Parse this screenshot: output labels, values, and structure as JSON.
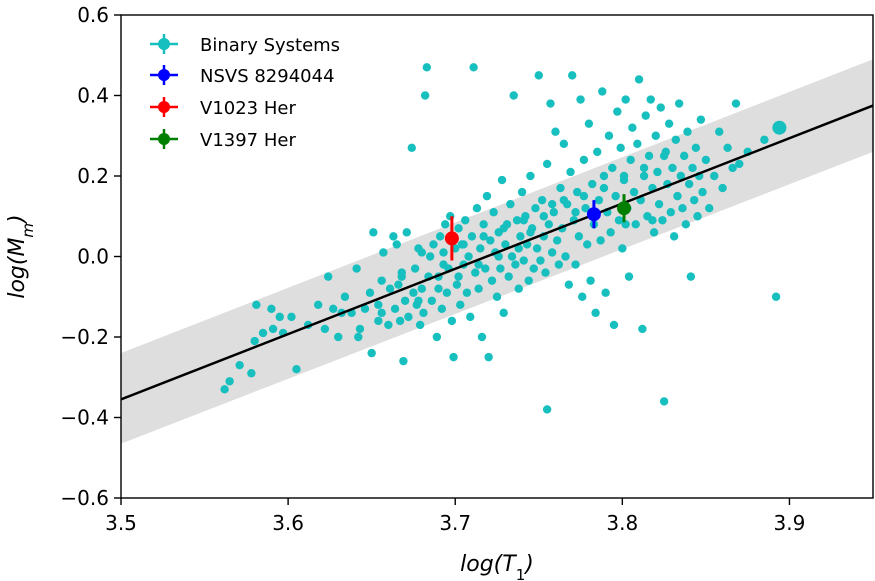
{
  "chart_data": {
    "type": "scatter",
    "xlabel": "log(T",
    "xlabel_sub": "1",
    "xlabel_close": ")",
    "ylabel": "log(M",
    "ylabel_sub": "m",
    "ylabel_close": ")",
    "xlim": [
      3.5,
      3.95
    ],
    "ylim": [
      -0.6,
      0.6
    ],
    "xticks": [
      3.5,
      3.6,
      3.7,
      3.8,
      3.9
    ],
    "xtick_labels": [
      "3.5",
      "3.6",
      "3.7",
      "3.8",
      "3.9"
    ],
    "yticks": [
      -0.6,
      -0.4,
      -0.2,
      0.0,
      0.2,
      0.4,
      0.6
    ],
    "ytick_labels": [
      "−0.6",
      "−0.4",
      "−0.2",
      "0.0",
      "0.2",
      "0.4",
      "0.6"
    ],
    "legend_position": "top-left",
    "fit_line": {
      "x": [
        3.5,
        3.95
      ],
      "y": [
        -0.355,
        0.375
      ],
      "color": "#000000"
    },
    "band": {
      "upper": [
        -0.24,
        0.49
      ],
      "lower": [
        -0.465,
        0.26
      ],
      "color": "#dedede"
    },
    "series": [
      {
        "name": "Binary Systems",
        "color": "#17bfbf",
        "points": [
          [
            3.562,
            -0.33
          ],
          [
            3.565,
            -0.31
          ],
          [
            3.571,
            -0.27
          ],
          [
            3.578,
            -0.29
          ],
          [
            3.58,
            -0.21
          ],
          [
            3.581,
            -0.12
          ],
          [
            3.585,
            -0.19
          ],
          [
            3.59,
            -0.13
          ],
          [
            3.591,
            -0.18
          ],
          [
            3.595,
            -0.15
          ],
          [
            3.597,
            -0.19
          ],
          [
            3.602,
            -0.15
          ],
          [
            3.605,
            -0.28
          ],
          [
            3.612,
            -0.17
          ],
          [
            3.618,
            -0.12
          ],
          [
            3.624,
            -0.05
          ],
          [
            3.627,
            -0.13
          ],
          [
            3.63,
            -0.2
          ],
          [
            3.634,
            -0.1
          ],
          [
            3.638,
            -0.14
          ],
          [
            3.641,
            -0.03
          ],
          [
            3.643,
            -0.18
          ],
          [
            3.646,
            -0.13
          ],
          [
            3.649,
            -0.09
          ],
          [
            3.65,
            -0.24
          ],
          [
            3.651,
            0.06
          ],
          [
            3.654,
            -0.12
          ],
          [
            3.656,
            -0.14
          ],
          [
            3.657,
            0.01
          ],
          [
            3.66,
            -0.17
          ],
          [
            3.661,
            -0.08
          ],
          [
            3.663,
            0.05
          ],
          [
            3.664,
            -0.13
          ],
          [
            3.665,
            0.03
          ],
          [
            3.667,
            -0.16
          ],
          [
            3.668,
            -0.05
          ],
          [
            3.669,
            -0.26
          ],
          [
            3.67,
            -0.11
          ],
          [
            3.671,
            0.06
          ],
          [
            3.672,
            -0.15
          ],
          [
            3.674,
            0.27
          ],
          [
            3.675,
            -0.09
          ],
          [
            3.676,
            -0.03
          ],
          [
            3.677,
            -0.12
          ],
          [
            3.678,
            0.02
          ],
          [
            3.679,
            -0.17
          ],
          [
            3.68,
            -0.08
          ],
          [
            3.681,
            -0.14
          ],
          [
            3.682,
            0.4
          ],
          [
            3.683,
            0.47
          ],
          [
            3.684,
            -0.05
          ],
          [
            3.685,
            0.0
          ],
          [
            3.686,
            -0.11
          ],
          [
            3.687,
            0.03
          ],
          [
            3.689,
            -0.2
          ],
          [
            3.69,
            -0.05
          ],
          [
            3.691,
            0.05
          ],
          [
            3.692,
            -0.13
          ],
          [
            3.693,
            0.01
          ],
          [
            3.694,
            0.08
          ],
          [
            3.695,
            -0.09
          ],
          [
            3.696,
            -0.03
          ],
          [
            3.697,
            0.1
          ],
          [
            3.698,
            -0.16
          ],
          [
            3.699,
            -0.25
          ],
          [
            3.7,
            0.02
          ],
          [
            3.701,
            -0.07
          ],
          [
            3.702,
            0.07
          ],
          [
            3.703,
            -0.12
          ],
          [
            3.704,
            0.03
          ],
          [
            3.705,
            -0.02
          ],
          [
            3.706,
            0.09
          ],
          [
            3.707,
            -0.09
          ],
          [
            3.708,
            0.0
          ],
          [
            3.709,
            -0.15
          ],
          [
            3.71,
            0.05
          ],
          [
            3.711,
            0.47
          ],
          [
            3.712,
            -0.04
          ],
          [
            3.713,
            0.12
          ],
          [
            3.714,
            -0.08
          ],
          [
            3.715,
            0.02
          ],
          [
            3.716,
            -0.2
          ],
          [
            3.717,
            0.08
          ],
          [
            3.718,
            -0.03
          ],
          [
            3.719,
            0.15
          ],
          [
            3.72,
            -0.25
          ],
          [
            3.721,
            0.04
          ],
          [
            3.722,
            -0.06
          ],
          [
            3.723,
            0.11
          ],
          [
            3.724,
            0.01
          ],
          [
            3.725,
            -0.1
          ],
          [
            3.726,
            0.06
          ],
          [
            3.727,
            -0.03
          ],
          [
            3.728,
            0.19
          ],
          [
            3.729,
            -0.14
          ],
          [
            3.73,
            0.03
          ],
          [
            3.731,
            0.08
          ],
          [
            3.732,
            -0.05
          ],
          [
            3.733,
            0.13
          ],
          [
            3.734,
            0.0
          ],
          [
            3.735,
            0.4
          ],
          [
            3.736,
            -0.02
          ],
          [
            3.737,
            0.09
          ],
          [
            3.738,
            -0.08
          ],
          [
            3.739,
            0.05
          ],
          [
            3.74,
            0.16
          ],
          [
            3.741,
            -0.01
          ],
          [
            3.742,
            0.1
          ],
          [
            3.743,
            0.03
          ],
          [
            3.744,
            -0.06
          ],
          [
            3.745,
            0.2
          ],
          [
            3.746,
            0.07
          ],
          [
            3.747,
            -0.03
          ],
          [
            3.748,
            0.12
          ],
          [
            3.749,
            0.02
          ],
          [
            3.75,
            0.45
          ],
          [
            3.751,
            -0.01
          ],
          [
            3.752,
            0.14
          ],
          [
            3.753,
            0.05
          ],
          [
            3.754,
            -0.04
          ],
          [
            3.755,
            0.23
          ],
          [
            3.755,
            -0.38
          ],
          [
            3.756,
            0.08
          ],
          [
            3.757,
            0.38
          ],
          [
            3.758,
            0.01
          ],
          [
            3.759,
            0.11
          ],
          [
            3.76,
            0.31
          ],
          [
            3.761,
            0.04
          ],
          [
            3.762,
            -0.02
          ],
          [
            3.763,
            0.17
          ],
          [
            3.764,
            0.07
          ],
          [
            3.765,
            0.28
          ],
          [
            3.766,
            0.0
          ],
          [
            3.767,
            0.13
          ],
          [
            3.768,
            -0.07
          ],
          [
            3.769,
            0.21
          ],
          [
            3.77,
            0.45
          ],
          [
            3.771,
            0.09
          ],
          [
            3.772,
            -0.02
          ],
          [
            3.773,
            0.16
          ],
          [
            3.774,
            0.05
          ],
          [
            3.775,
            0.39
          ],
          [
            3.776,
            -0.1
          ],
          [
            3.777,
            0.24
          ],
          [
            3.778,
            0.12
          ],
          [
            3.779,
            0.03
          ],
          [
            3.78,
            0.33
          ],
          [
            3.781,
            -0.06
          ],
          [
            3.782,
            0.18
          ],
          [
            3.783,
            0.08
          ],
          [
            3.784,
            -0.14
          ],
          [
            3.785,
            0.26
          ],
          [
            3.786,
            0.14
          ],
          [
            3.787,
            0.04
          ],
          [
            3.788,
            0.41
          ],
          [
            3.789,
            0.2
          ],
          [
            3.79,
            -0.09
          ],
          [
            3.791,
            0.11
          ],
          [
            3.792,
            0.3
          ],
          [
            3.793,
            0.06
          ],
          [
            3.794,
            0.22
          ],
          [
            3.795,
            -0.17
          ],
          [
            3.796,
            0.15
          ],
          [
            3.797,
            0.36
          ],
          [
            3.798,
            0.09
          ],
          [
            3.799,
            0.27
          ],
          [
            3.8,
            0.02
          ],
          [
            3.801,
            0.19
          ],
          [
            3.802,
            0.39
          ],
          [
            3.803,
            0.12
          ],
          [
            3.804,
            -0.05
          ],
          [
            3.805,
            0.24
          ],
          [
            3.806,
            0.32
          ],
          [
            3.807,
            0.16
          ],
          [
            3.808,
            0.08
          ],
          [
            3.809,
            0.28
          ],
          [
            3.81,
            0.44
          ],
          [
            3.811,
            0.14
          ],
          [
            3.812,
            -0.18
          ],
          [
            3.813,
            0.2
          ],
          [
            3.814,
            0.35
          ],
          [
            3.815,
            0.1
          ],
          [
            3.816,
            0.25
          ],
          [
            3.817,
            0.39
          ],
          [
            3.818,
            0.17
          ],
          [
            3.819,
            0.06
          ],
          [
            3.82,
            0.3
          ],
          [
            3.821,
            0.21
          ],
          [
            3.822,
            0.13
          ],
          [
            3.823,
            0.37
          ],
          [
            3.824,
            0.09
          ],
          [
            3.825,
            -0.36
          ],
          [
            3.826,
            0.26
          ],
          [
            3.827,
            0.18
          ],
          [
            3.828,
            0.33
          ],
          [
            3.829,
            0.11
          ],
          [
            3.83,
            0.22
          ],
          [
            3.831,
            0.05
          ],
          [
            3.832,
            0.29
          ],
          [
            3.833,
            0.15
          ],
          [
            3.834,
            0.38
          ],
          [
            3.835,
            0.2
          ],
          [
            3.836,
            0.12
          ],
          [
            3.837,
            0.25
          ],
          [
            3.838,
            0.08
          ],
          [
            3.839,
            0.31
          ],
          [
            3.84,
            0.18
          ],
          [
            3.841,
            -0.05
          ],
          [
            3.842,
            0.22
          ],
          [
            3.843,
            0.14
          ],
          [
            3.844,
            0.27
          ],
          [
            3.845,
            0.1
          ],
          [
            3.846,
            0.2
          ],
          [
            3.847,
            0.34
          ],
          [
            3.848,
            0.16
          ],
          [
            3.85,
            0.24
          ],
          [
            3.852,
            0.12
          ],
          [
            3.855,
            0.2
          ],
          [
            3.858,
            0.31
          ],
          [
            3.86,
            0.17
          ],
          [
            3.863,
            0.27
          ],
          [
            3.866,
            0.22
          ],
          [
            3.868,
            0.38
          ],
          [
            3.87,
            0.23
          ],
          [
            3.875,
            0.26
          ],
          [
            3.885,
            0.29
          ],
          [
            3.892,
            -0.1
          ],
          [
            3.894,
            0.32
          ],
          [
            3.818,
            0.09
          ],
          [
            3.802,
            0.08
          ],
          [
            3.772,
            0.11
          ],
          [
            3.758,
            0.13
          ],
          [
            3.745,
            0.06
          ],
          [
            3.738,
            0.02
          ],
          [
            3.726,
            0.0
          ],
          [
            3.714,
            -0.02
          ],
          [
            3.702,
            -0.05
          ],
          [
            3.69,
            -0.08
          ],
          [
            3.678,
            -0.11
          ],
          [
            3.666,
            -0.07
          ],
          [
            3.654,
            -0.16
          ],
          [
            3.642,
            -0.2
          ],
          [
            3.632,
            -0.14
          ],
          [
            3.622,
            -0.18
          ],
          [
            3.656,
            -0.06
          ],
          [
            3.668,
            -0.04
          ],
          [
            3.68,
            0.01
          ],
          [
            3.693,
            -0.02
          ],
          [
            3.705,
            0.03
          ],
          [
            3.717,
            0.05
          ],
          [
            3.729,
            0.07
          ],
          [
            3.741,
            0.09
          ],
          [
            3.753,
            0.1
          ],
          [
            3.765,
            0.14
          ],
          [
            3.777,
            0.15
          ],
          [
            3.789,
            0.17
          ],
          [
            3.801,
            0.2
          ],
          [
            3.813,
            0.22
          ],
          [
            3.825,
            0.25
          ]
        ],
        "sizes_large": [
          [
            3.894,
            0.32
          ]
        ]
      },
      {
        "name": "NSVS 8294044",
        "color": "#0000ff",
        "x": 3.783,
        "y": 0.105,
        "yerr": 0.035
      },
      {
        "name": "V1023 Her",
        "color": "#ff0000",
        "x": 3.698,
        "y": 0.045,
        "yerr": 0.055
      },
      {
        "name": "V1397 Her",
        "color": "#007f00",
        "x": 3.801,
        "y": 0.12,
        "yerr": 0.035
      }
    ]
  }
}
